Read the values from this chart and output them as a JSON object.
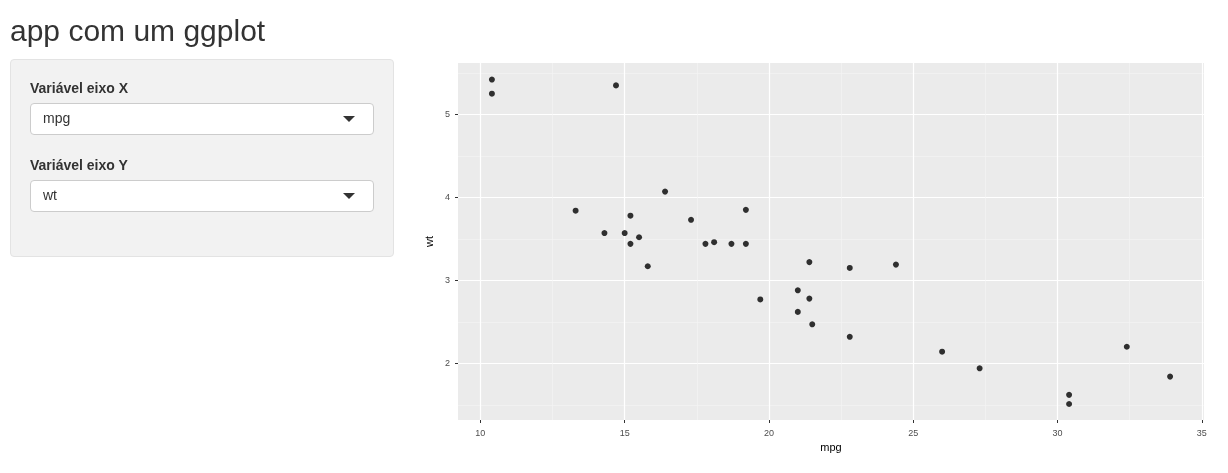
{
  "chart_data": {
    "type": "scatter",
    "title": "app com um ggplot",
    "xlabel": "mpg",
    "ylabel": "wt",
    "annotations": [
      "Variável eixo X",
      "mpg",
      "Variável eixo Y",
      "wt"
    ],
    "x": [
      21.0,
      21.0,
      22.8,
      21.4,
      18.7,
      18.1,
      14.3,
      24.4,
      22.8,
      19.2,
      17.8,
      16.4,
      17.3,
      15.2,
      10.4,
      10.4,
      14.7,
      32.4,
      30.4,
      33.9,
      21.5,
      15.5,
      15.2,
      13.3,
      19.2,
      27.3,
      26.0,
      30.4,
      15.8,
      19.7,
      15.0,
      21.4
    ],
    "values": [
      2.62,
      2.88,
      2.32,
      3.22,
      3.44,
      3.46,
      3.57,
      3.19,
      3.15,
      3.44,
      3.44,
      4.07,
      3.73,
      3.78,
      5.25,
      5.42,
      5.35,
      2.2,
      1.62,
      1.84,
      2.47,
      3.52,
      3.44,
      3.84,
      3.85,
      1.94,
      2.14,
      1.51,
      3.17,
      2.77,
      3.57,
      2.78
    ],
    "color": "#000000",
    "marker": "circle",
    "xlim": [
      9.225,
      35.075
    ],
    "xticks": [
      10,
      15,
      20,
      25,
      30,
      35
    ],
    "ylim": [
      1.317,
      5.62
    ],
    "yticks": [
      2,
      3,
      4,
      5
    ],
    "grid": true
  }
}
